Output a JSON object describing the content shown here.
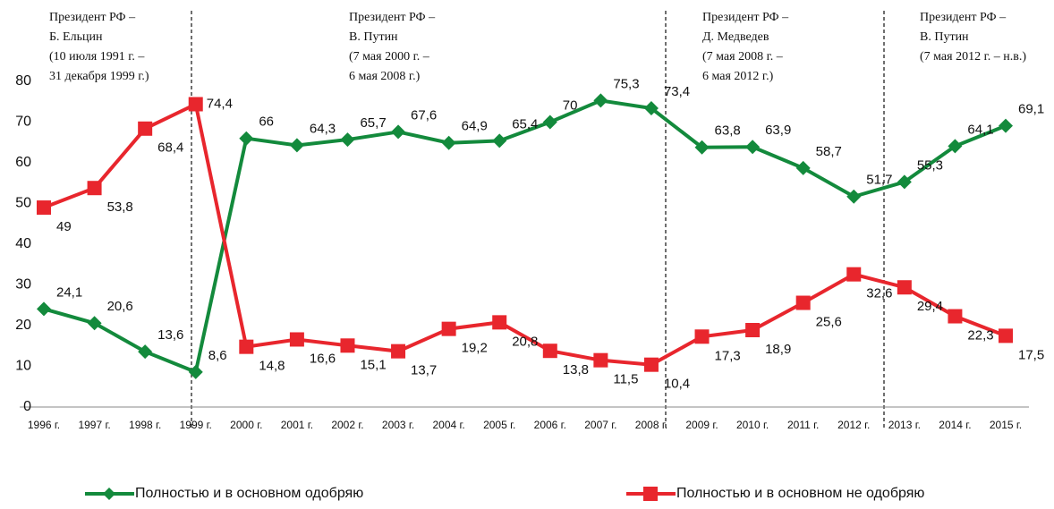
{
  "chart_data": {
    "type": "line",
    "categories": [
      "1996 г.",
      "1997 г.",
      "1998 г.",
      "1999 г.",
      "2000 г.",
      "2001 г.",
      "2002 г.",
      "2003 г.",
      "2004 г.",
      "2005 г.",
      "2006 г.",
      "2007 г.",
      "2008 г.",
      "2009 г.",
      "2010 г.",
      "2011 г.",
      "2012 г.",
      "2013 г.",
      "2014 г.",
      "2015 г."
    ],
    "series": [
      {
        "name": "Полностью и в основном одобряю",
        "color": "#138a3c",
        "values": [
          24.1,
          20.6,
          13.6,
          8.6,
          66,
          64.3,
          65.7,
          67.6,
          64.9,
          65.4,
          70,
          75.3,
          73.4,
          63.8,
          63.9,
          58.7,
          51.7,
          55.3,
          64.1,
          69.1
        ],
        "value_labels": [
          "24,1",
          "20,6",
          "13,6",
          "8,6",
          "66",
          "64,3",
          "65,7",
          "67,6",
          "64,9",
          "65,4",
          "70",
          "75,3",
          "73,4",
          "63,8",
          "63,9",
          "58,7",
          "51,7",
          "55,3",
          "64,1",
          "69,1"
        ]
      },
      {
        "name": "Полностью и в основном не одобряю",
        "color": "#e8262d",
        "values": [
          49,
          53.8,
          68.4,
          74.4,
          14.8,
          16.6,
          15.1,
          13.7,
          19.2,
          20.8,
          13.8,
          11.5,
          10.4,
          17.3,
          18.9,
          25.6,
          32.6,
          29.4,
          22.3,
          17.5
        ],
        "value_labels": [
          "49",
          "53,8",
          "68,4",
          "74,4",
          "14,8",
          "16,6",
          "15,1",
          "13,7",
          "19,2",
          "20,8",
          "13,8",
          "11,5",
          "10,4",
          "17,3",
          "18,9",
          "25,6",
          "32,6",
          "29,4",
          "22,3",
          "17,5"
        ]
      }
    ],
    "ylim": [
      0,
      80
    ],
    "yticks": [
      0,
      10,
      20,
      30,
      40,
      50,
      60,
      70,
      80
    ],
    "grid": false,
    "legend": "bottom",
    "annotations": [
      {
        "lines": [
          "Президент РФ –",
          "Б. Ельцин",
          "(10 июля 1991 г. –",
          "31 декабря 1999 г.)"
        ]
      },
      {
        "lines": [
          "Президент РФ –",
          "В. Путин",
          "(7 мая 2000 г. –",
          "6 мая 2008 г.)"
        ]
      },
      {
        "lines": [
          "Президент РФ –",
          "Д. Медведев",
          "(7 мая 2008 г. –",
          "6 мая 2012 г.)"
        ]
      },
      {
        "lines": [
          "Президент РФ –",
          "В. Путин",
          "(7 мая 2012 г. – н.в.)"
        ]
      }
    ]
  }
}
